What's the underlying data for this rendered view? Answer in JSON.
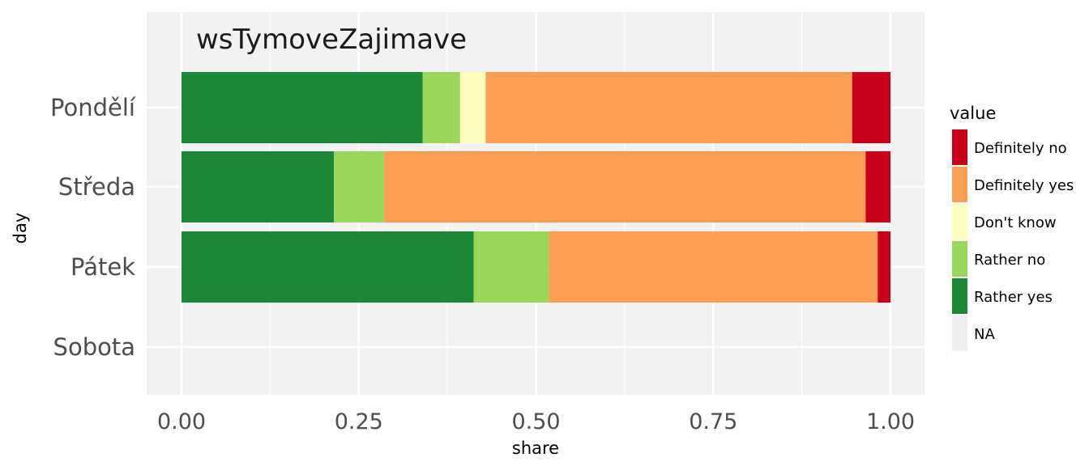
{
  "chart_data": {
    "type": "bar",
    "orientation": "horizontal",
    "stacked": true,
    "title": "wsTymoveZajimave",
    "xlabel": "share",
    "ylabel": "day",
    "xlim": [
      0,
      1
    ],
    "xticks": [
      "0.00",
      "0.25",
      "0.50",
      "0.75",
      "1.00"
    ],
    "xtick_values": [
      0,
      0.25,
      0.5,
      0.75,
      1.0
    ],
    "grid": true,
    "categories": [
      "Pondělí",
      "Středa",
      "Pátek",
      "Sobota"
    ],
    "series": [
      {
        "name": "Rather yes",
        "color": "#1a8837",
        "values": [
          0.34,
          0.215,
          0.412,
          0
        ]
      },
      {
        "name": "Rather no",
        "color": "#9bd75d",
        "values": [
          0.053,
          0.071,
          0.106,
          0
        ]
      },
      {
        "name": "Don't know",
        "color": "#ffffbf",
        "values": [
          0.036,
          0,
          0,
          0
        ]
      },
      {
        "name": "Definitely yes",
        "color": "#fc9e53",
        "values": [
          0.517,
          0.679,
          0.464,
          0
        ]
      },
      {
        "name": "Definitely no",
        "color": "#ca001b",
        "values": [
          0.054,
          0.035,
          0.018,
          0
        ]
      }
    ],
    "legend": {
      "title": "value",
      "placement": "right",
      "entries": [
        {
          "label": "Definitely no",
          "color": "#ca001b"
        },
        {
          "label": "Definitely yes",
          "color": "#fc9e53"
        },
        {
          "label": "Don't know",
          "color": "#ffffbf"
        },
        {
          "label": "Rather no",
          "color": "#9bd75d"
        },
        {
          "label": "Rather yes",
          "color": "#1a8837"
        },
        {
          "label": "NA",
          "color": "#eeeeee"
        }
      ]
    }
  }
}
